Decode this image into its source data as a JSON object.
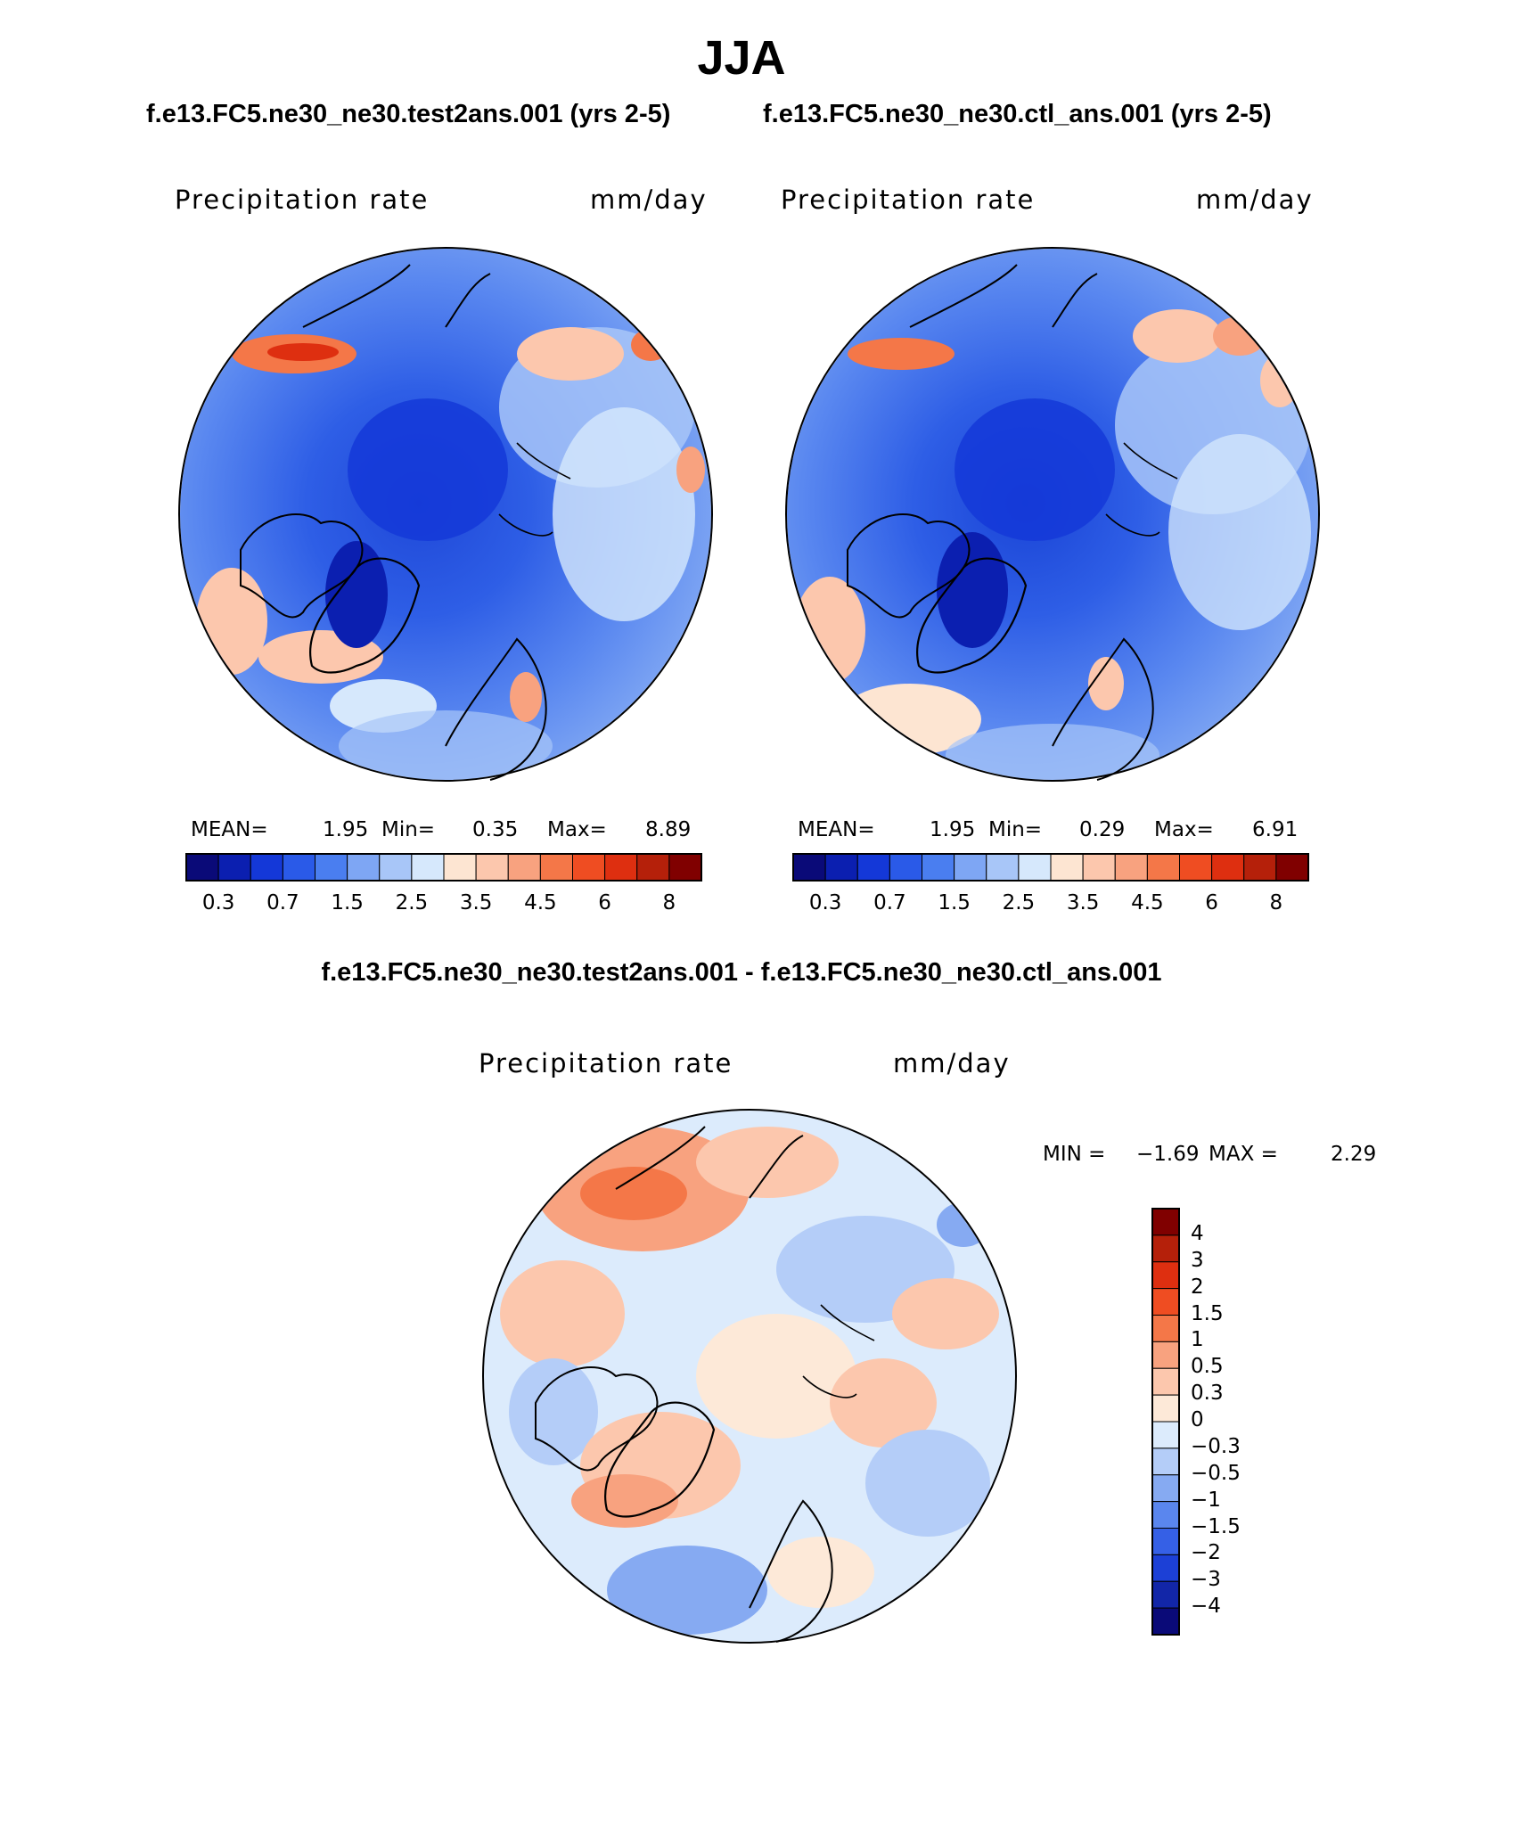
{
  "figure": {
    "season": "JJA",
    "case_title": "f.e13.FC5.ne30_ne30.test2ans.001 (yrs 2-5)",
    "ctl_title": "f.e13.FC5.ne30_ne30.ctl_ans.001 (yrs 2-5)",
    "diff_title": "f.e13.FC5.ne30_ne30.test2ans.001 - f.e13.FC5.ne30_ne30.ctl_ans.001"
  },
  "panels": [
    {
      "variable": "Precipitation rate",
      "units": "mm/day",
      "mean_label": "MEAN=",
      "mean": "1.95",
      "min_label": "Min=",
      "min": "0.35",
      "max_label": "Max=",
      "max": "8.89"
    },
    {
      "variable": "Precipitation rate",
      "units": "mm/day",
      "mean_label": "MEAN=",
      "mean": "1.95",
      "min_label": "Min=",
      "min": "0.29",
      "max_label": "Max=",
      "max": "6.91"
    }
  ],
  "diff_panel": {
    "variable": "Precipitation rate",
    "units": "mm/day",
    "min_label": "MIN =",
    "min": "−1.69",
    "max_label": "MAX =",
    "max": "2.29"
  },
  "colorbar_main": {
    "colors": [
      "#0a0a78",
      "#0b1fb0",
      "#1438d8",
      "#2a5ae8",
      "#4a7ef0",
      "#7ea6f4",
      "#a8c6f8",
      "#d6e8fc",
      "#fde5d2",
      "#fcc7ad",
      "#f8a27f",
      "#f47748",
      "#ef4d22",
      "#de2f10",
      "#b5200a",
      "#800000"
    ],
    "ticks": [
      "0.3",
      "0.7",
      "1.5",
      "2.5",
      "3.5",
      "4.5",
      "6",
      "8"
    ]
  },
  "colorbar_diff": {
    "colors": [
      "#800000",
      "#b5200a",
      "#de2f10",
      "#ef4d22",
      "#f47748",
      "#f8a27f",
      "#fcc7ad",
      "#fde9d8",
      "#dcebfc",
      "#b4cdf8",
      "#86aaf2",
      "#5a86ee",
      "#3560e6",
      "#1c40d6",
      "#1226a8",
      "#0a0a78"
    ],
    "ticks": [
      "4",
      "3",
      "2",
      "1.5",
      "1",
      "0.5",
      "0.3",
      "0",
      "−0.3",
      "−0.5",
      "−1",
      "−1.5",
      "−2",
      "−3",
      "−4"
    ]
  }
}
